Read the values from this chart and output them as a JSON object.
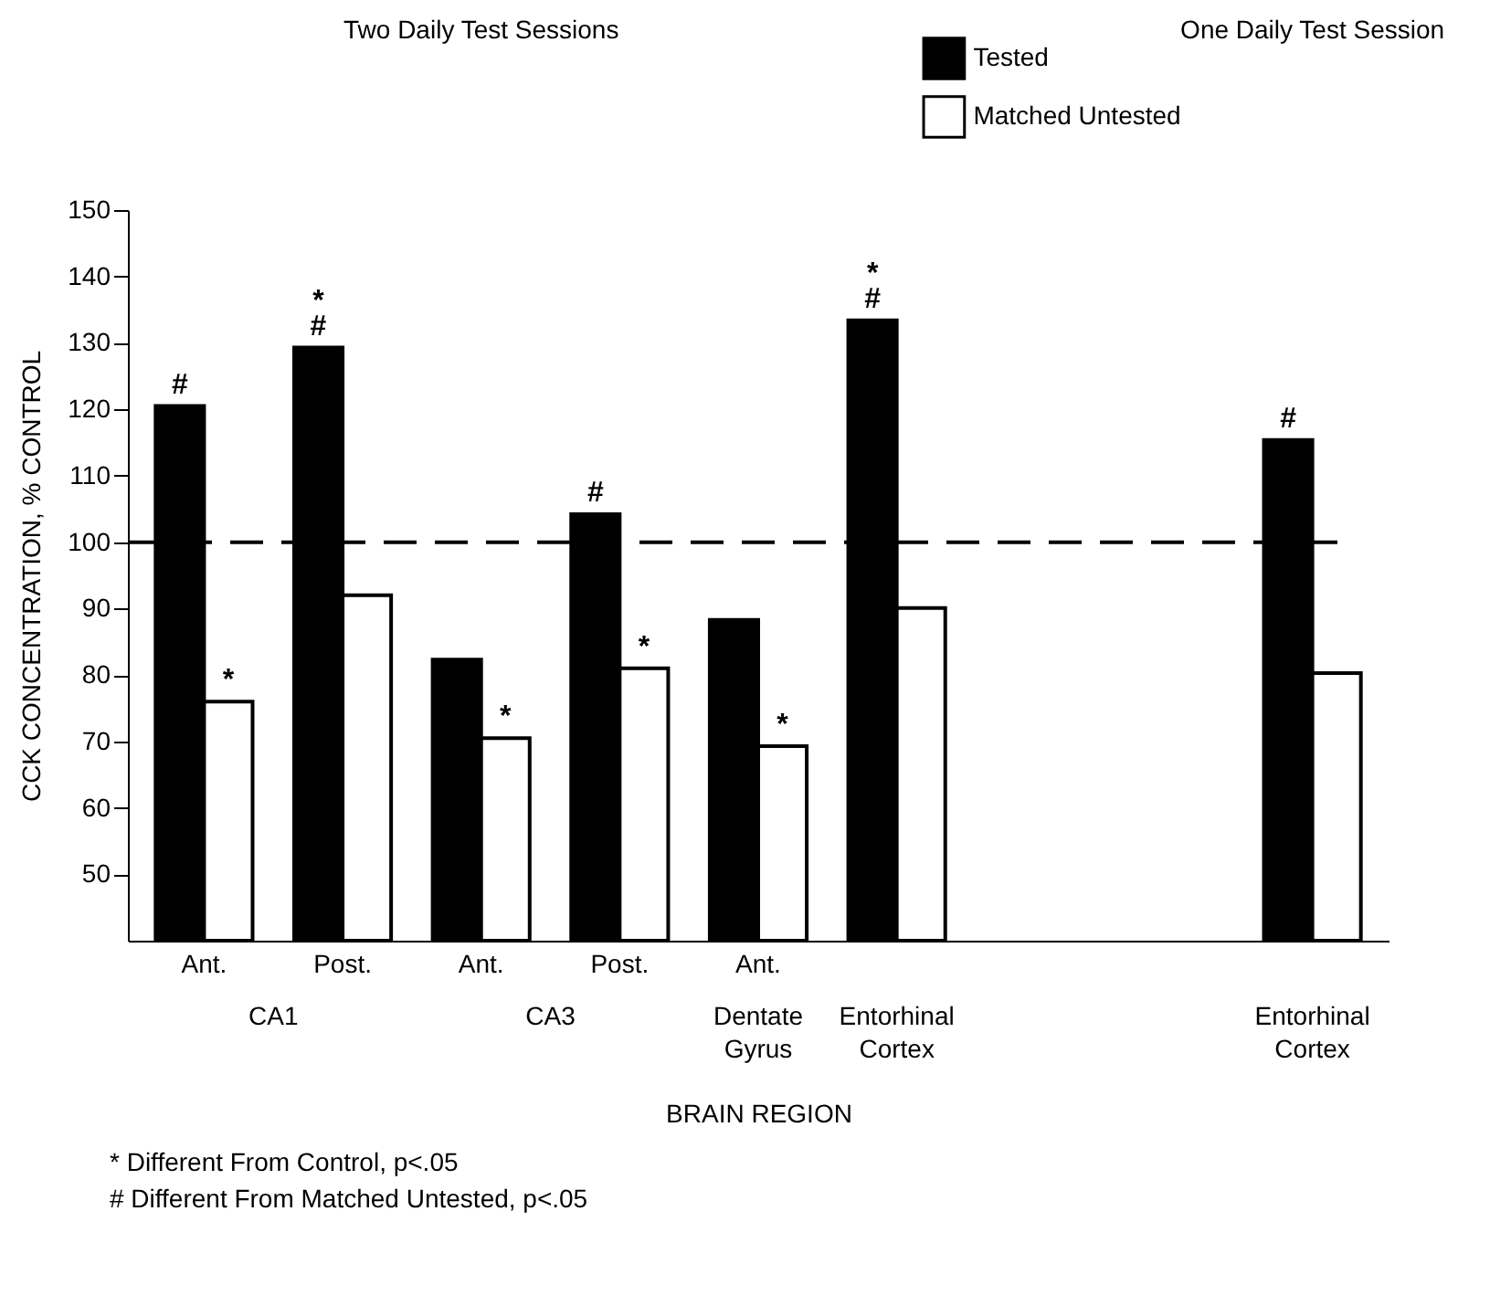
{
  "chart_data": {
    "type": "bar",
    "ylabel": "CCK CONCENTRATION, % CONTROL",
    "xlabel": "BRAIN REGION",
    "categories": [
      "Ant.",
      "Post.",
      "Ant.",
      "Post.",
      "Ant.",
      null,
      null,
      null,
      null
    ],
    "series": [
      {
        "name": "Tested",
        "color": "#000000",
        "values": [
          120.5,
          129.3,
          82.3,
          104.2,
          88.3,
          133.4,
          null,
          null,
          115.4
        ],
        "value_labels": [
          "#",
          "*\n#",
          null,
          "#",
          null,
          "*\n#",
          null,
          null,
          "#"
        ]
      },
      {
        "name": "Matched Untested",
        "color": "#ffffff",
        "values": [
          76,
          92,
          70.5,
          81,
          69.3,
          90.1,
          null,
          null,
          80.3
        ],
        "value_labels": [
          "*",
          null,
          "*",
          "*",
          "*",
          null,
          null,
          null,
          null
        ]
      }
    ],
    "ylim": [
      40,
      150
    ],
    "yticks": [
      50,
      60,
      70,
      80,
      90,
      100,
      110,
      120,
      130,
      140,
      150
    ],
    "grid": false,
    "legend": "top right",
    "ref_lines": [
      {
        "axis": "y",
        "value": 100,
        "label": null,
        "color": "#000000",
        "line_style": "dashed"
      }
    ],
    "annotations": [
      "Two Daily Test Sessions",
      "One Daily Test Session",
      "CA1",
      "CA3",
      "Dentate\nGyrus",
      "Entorhinal\nCortex",
      "Entorhinal\nCortex",
      "* Different From Control, p<.05",
      "# Different From Matched Untested, p<.05"
    ]
  }
}
